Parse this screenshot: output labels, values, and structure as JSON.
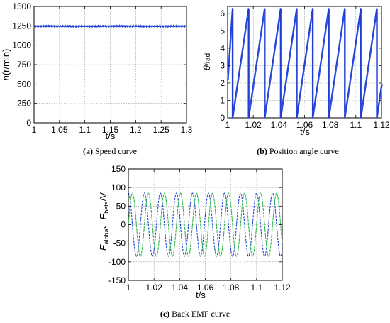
{
  "chart_data": [
    {
      "type": "line",
      "panel_label": "(a)",
      "caption": "Speed curve",
      "xlabel": "t/s",
      "ylabel_pre": "n",
      "ylabel_post": "(r/min)",
      "xlim": [
        1,
        1.3
      ],
      "ylim": [
        0,
        1500
      ],
      "xticks": [
        "1",
        "1.05",
        "1.1",
        "1.15",
        "1.2",
        "1.25",
        "1.3"
      ],
      "yticks": [
        "0",
        "250",
        "500",
        "750",
        "1000",
        "1250",
        "1500"
      ],
      "grid": true,
      "series": [
        {
          "x": [
            1,
            1.3
          ],
          "y": [
            1245,
            1245
          ],
          "color": "#1f3fd6",
          "noise": 8
        }
      ]
    },
    {
      "type": "line",
      "panel_label": "(b)",
      "caption": "Position angle curve",
      "xlabel": "t/s",
      "ylabel_pre": "θ",
      "ylabel_post": "/rad",
      "xlim": [
        1,
        1.12
      ],
      "ylim": [
        0,
        6.4
      ],
      "xticks": [
        "1",
        "1.02",
        "1.04",
        "1.06",
        "1.08",
        "1.1",
        "1.12"
      ],
      "yticks": [
        "0",
        "1",
        "2",
        "3",
        "4",
        "5",
        "6"
      ],
      "grid": true,
      "sawtooth": {
        "period": 0.0125,
        "phase_x": 1.0037,
        "start_value": 2.2,
        "min": 0,
        "max": 6.28
      },
      "series": [
        {
          "color": "#1f3fd6"
        }
      ]
    },
    {
      "type": "line",
      "panel_label": "(c)",
      "caption": "Back EMF curve",
      "xlabel": "t/s",
      "ylabel_a": "E",
      "ylabel_a_sub": "alpha",
      "ylabel_sep": "、",
      "ylabel_b": "E",
      "ylabel_b_sub": "beta",
      "ylabel_post": "/V",
      "xlim": [
        1,
        1.12
      ],
      "ylim": [
        -150,
        150
      ],
      "xticks": [
        "1",
        "1.02",
        "1.04",
        "1.06",
        "1.08",
        "1.1",
        "1.12"
      ],
      "yticks": [
        "-150",
        "-100",
        "-50",
        "0",
        "50",
        "100",
        "150"
      ],
      "grid": true,
      "series": [
        {
          "amplitude": 85,
          "period": 0.0125,
          "phase_deg": 90,
          "color": "#1f3fd6"
        },
        {
          "amplitude": 85,
          "period": 0.0125,
          "phase_deg": 0,
          "color": "#2fb84a"
        }
      ]
    }
  ]
}
